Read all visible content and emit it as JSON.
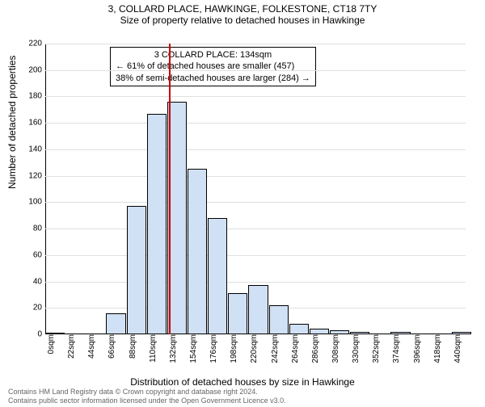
{
  "title_line1": "3, COLLARD PLACE, HAWKINGE, FOLKESTONE, CT18 7TY",
  "title_line2": "Size of property relative to detached houses in Hawkinge",
  "yaxis_label": "Number of detached properties",
  "xaxis_label": "Distribution of detached houses by size in Hawkinge",
  "annotation": {
    "line1": "3 COLLARD PLACE: 134sqm",
    "line2": "← 61% of detached houses are smaller (457)",
    "line3": "38% of semi-detached houses are larger (284) →"
  },
  "footer": {
    "line1": "Contains HM Land Registry data © Crown copyright and database right 2024.",
    "line2": "Contains public sector information licensed under the Open Government Licence v3.0."
  },
  "chart": {
    "type": "histogram",
    "ylim": [
      0,
      220
    ],
    "ytick_step": 20,
    "xlim": [
      0,
      455
    ],
    "xtick_step": 22,
    "x_unit": "sqm",
    "bar_width_sqm": 22,
    "bins": [
      {
        "x": 0,
        "count": 1
      },
      {
        "x": 22,
        "count": 0
      },
      {
        "x": 44,
        "count": 0
      },
      {
        "x": 66,
        "count": 16
      },
      {
        "x": 88,
        "count": 97
      },
      {
        "x": 110,
        "count": 167
      },
      {
        "x": 132,
        "count": 176
      },
      {
        "x": 154,
        "count": 125
      },
      {
        "x": 176,
        "count": 88
      },
      {
        "x": 198,
        "count": 31
      },
      {
        "x": 220,
        "count": 37
      },
      {
        "x": 242,
        "count": 22
      },
      {
        "x": 264,
        "count": 8
      },
      {
        "x": 286,
        "count": 4
      },
      {
        "x": 308,
        "count": 3
      },
      {
        "x": 330,
        "count": 2
      },
      {
        "x": 352,
        "count": 0
      },
      {
        "x": 374,
        "count": 2
      },
      {
        "x": 396,
        "count": 0
      },
      {
        "x": 418,
        "count": 0
      },
      {
        "x": 440,
        "count": 2
      }
    ],
    "reference_value": 134,
    "bar_fill": "#d0e0f5",
    "bar_stroke": "#000000",
    "refline_color": "#cc0000",
    "grid_color": "#e0e0e0",
    "background": "#ffffff",
    "title_fontsize": 12,
    "axis_label_fontsize": 12,
    "tick_fontsize": 10
  }
}
